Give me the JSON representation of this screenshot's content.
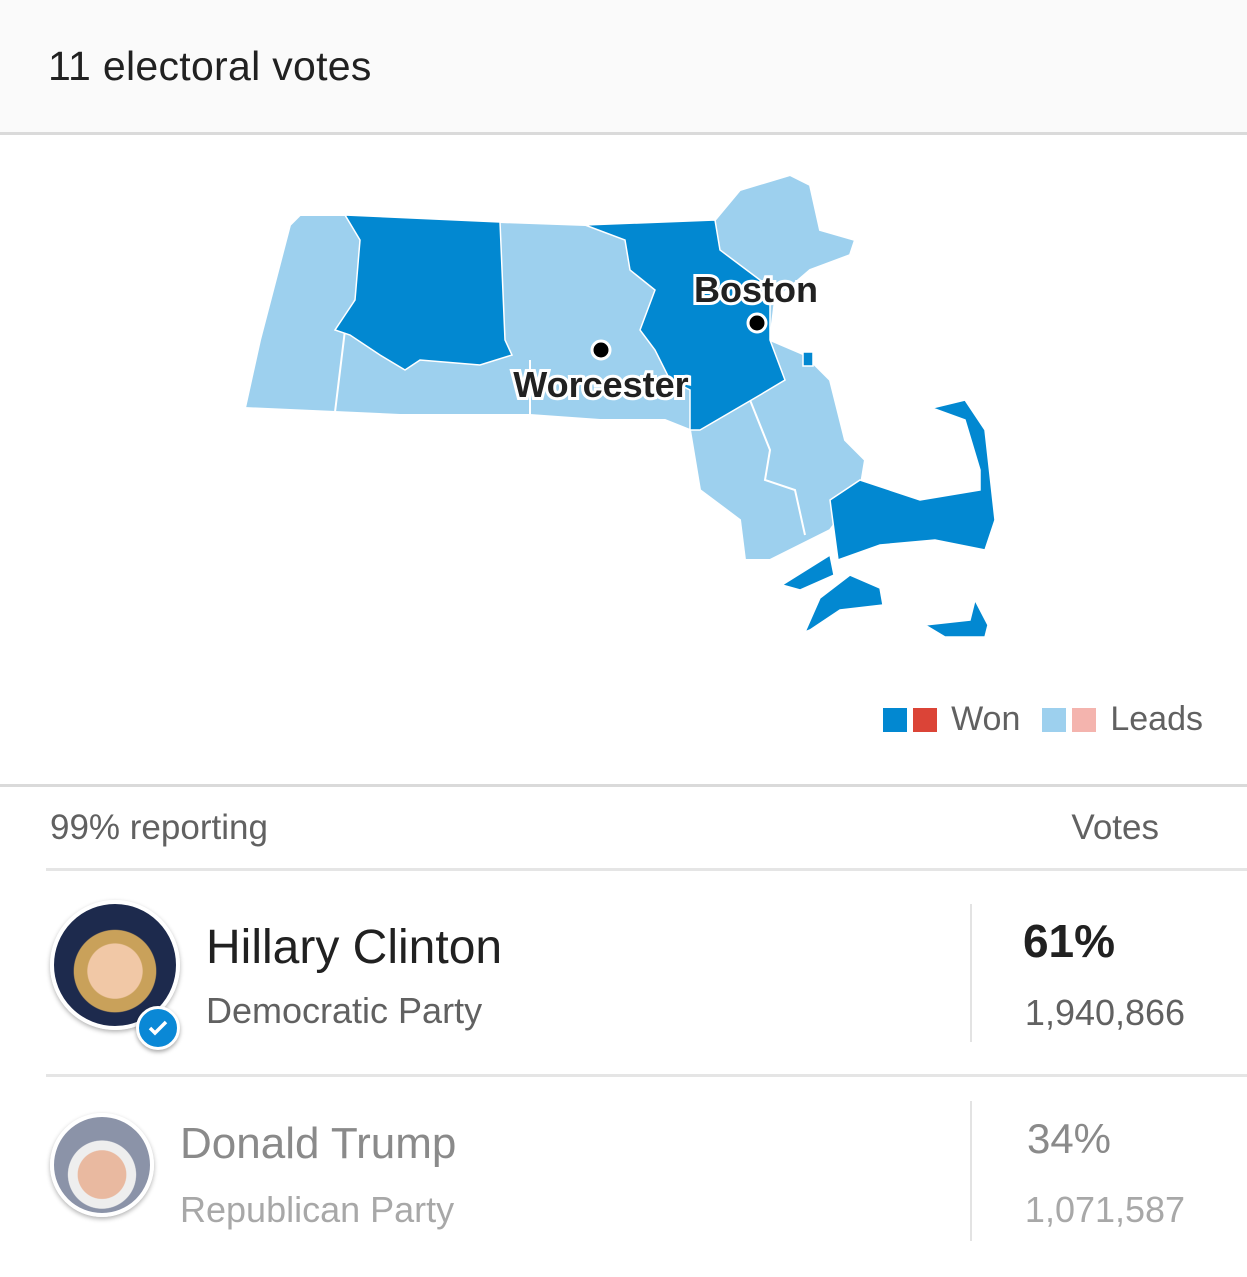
{
  "header": {
    "title": "11 electoral votes"
  },
  "map": {
    "cities": [
      {
        "name": "Boston"
      },
      {
        "name": "Worcester"
      }
    ],
    "colors": {
      "dem_won": "#0288d1",
      "dem_leads": "#9dd0ee",
      "rep_won": "#db4437",
      "rep_leads": "#f4b4ae"
    }
  },
  "legend": {
    "won_label": "Won",
    "leads_label": "Leads"
  },
  "results": {
    "reporting": "99% reporting",
    "votes_header": "Votes",
    "candidates": [
      {
        "name": "Hillary Clinton",
        "party": "Democratic Party",
        "percent": "61%",
        "votes": "1,940,866",
        "winner": true,
        "icon": "check-circle-icon"
      },
      {
        "name": "Donald Trump",
        "party": "Republican Party",
        "percent": "34%",
        "votes": "1,071,587",
        "winner": false
      }
    ]
  }
}
